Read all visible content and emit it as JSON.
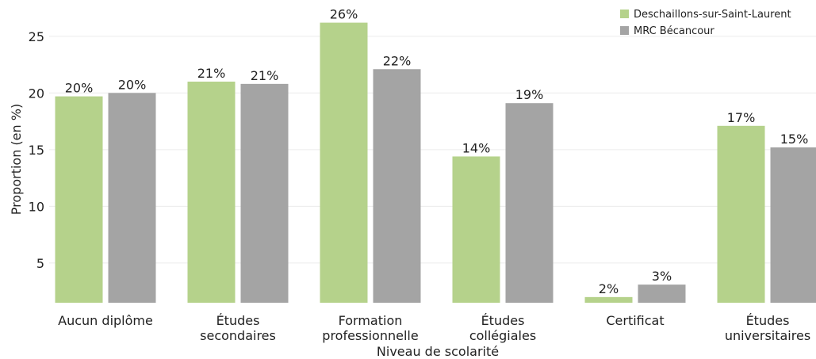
{
  "chart_data": {
    "type": "bar",
    "title": "",
    "xlabel": "Niveau de scolarité",
    "ylabel": "Proportion (en %)",
    "categories": [
      [
        "Aucun diplôme"
      ],
      [
        "Études",
        "secondaires"
      ],
      [
        "Formation",
        "professionnelle"
      ],
      [
        "Études",
        "collégiales"
      ],
      [
        "Certificat"
      ],
      [
        "Études",
        "universitaires"
      ]
    ],
    "series": [
      {
        "name": "Deschaillons-sur-Saint-Laurent",
        "color": "#b5d28b",
        "values": [
          19.7,
          21.0,
          26.2,
          14.4,
          2.0,
          17.1
        ],
        "labels": [
          "20%",
          "21%",
          "26%",
          "14%",
          "2%",
          "17%"
        ]
      },
      {
        "name": "MRC Bécancour",
        "color": "#a4a4a4",
        "values": [
          20.0,
          20.8,
          22.1,
          19.1,
          3.1,
          15.2
        ],
        "labels": [
          "20%",
          "21%",
          "22%",
          "19%",
          "3%",
          "15%"
        ]
      }
    ],
    "yticks": [
      5,
      10,
      15,
      20,
      25
    ],
    "ylim": [
      1.5,
      27.5
    ],
    "grid": true,
    "legend_position": "top-right"
  }
}
